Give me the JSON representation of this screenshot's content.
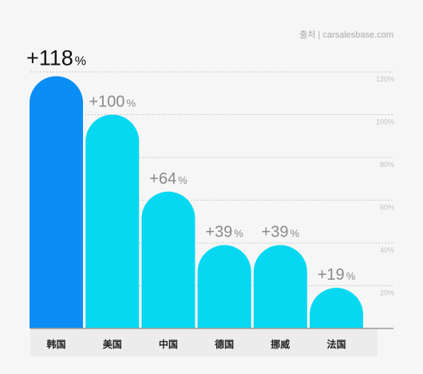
{
  "source": "출처 | carsalesbase.com",
  "chart_data": {
    "type": "bar",
    "categories": [
      "韩国",
      "美国",
      "中国",
      "德国",
      "挪威",
      "法国"
    ],
    "values": [
      118,
      100,
      64,
      39,
      39,
      19
    ],
    "value_labels": [
      "+118",
      "+100",
      "+64",
      "+39",
      "+39",
      "+19"
    ],
    "value_suffix": "%",
    "y_ticks": [
      "20%",
      "40%",
      "60%",
      "80%",
      "100%",
      "120%"
    ],
    "ylim": [
      0,
      120
    ],
    "grid": true,
    "highlight_index": 0,
    "colors": {
      "highlight": "#0a8ef5",
      "default": "#05d8f0",
      "axis": "#999999"
    }
  }
}
